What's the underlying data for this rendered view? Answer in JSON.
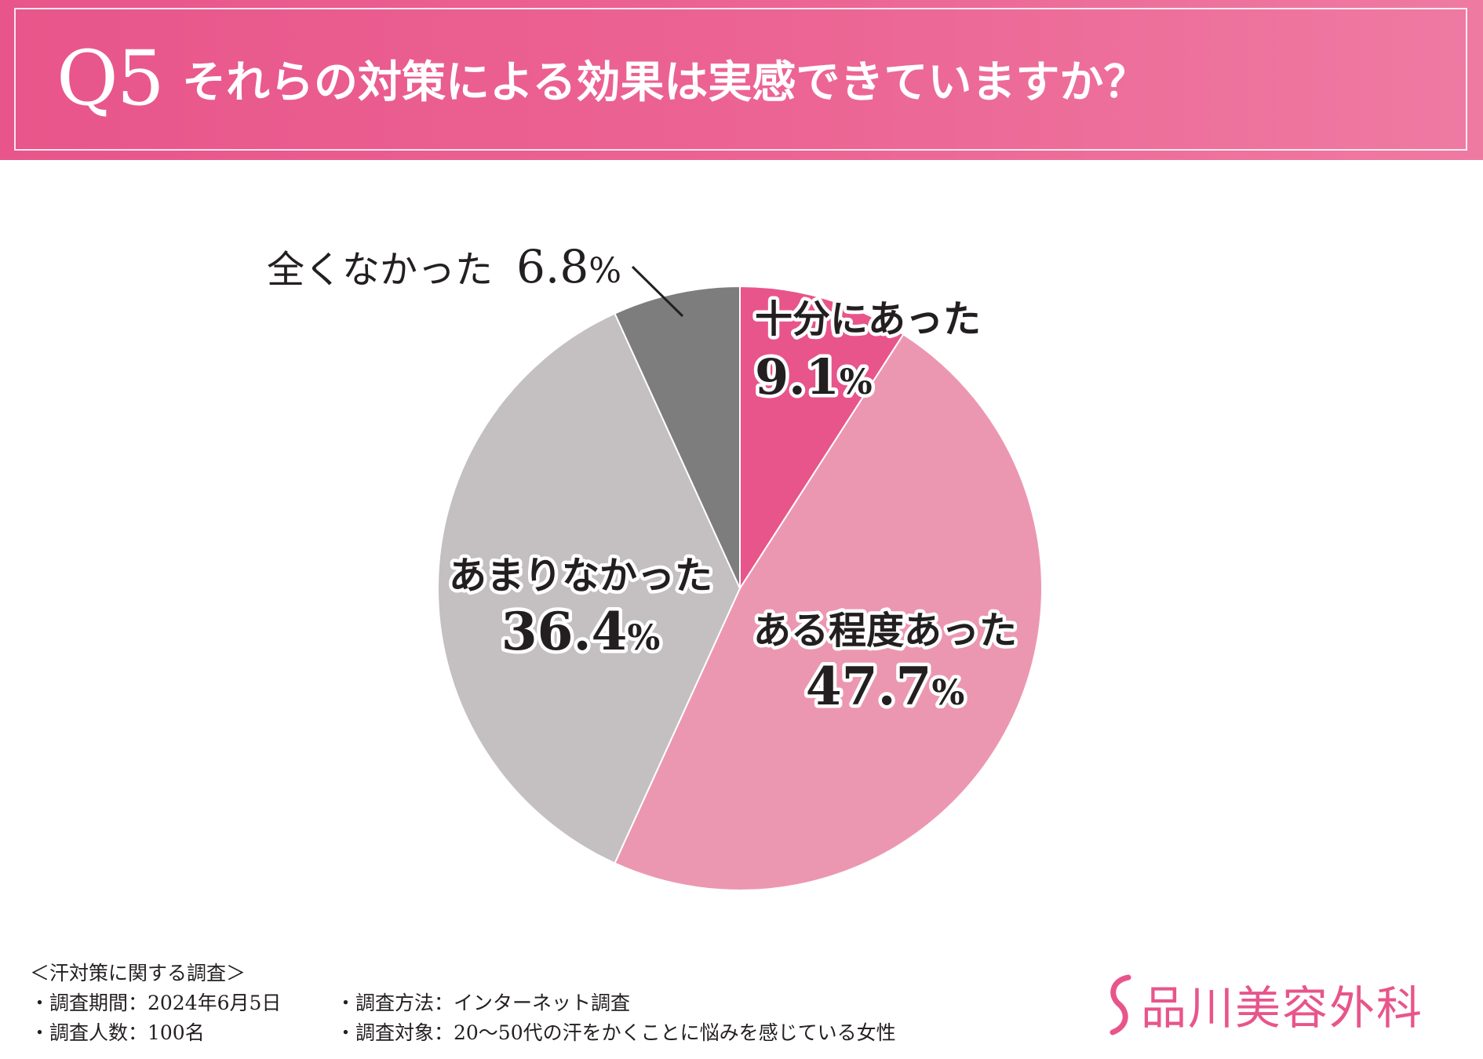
{
  "header": {
    "number": "Q5",
    "question": "それらの対策による効果は実感できていますか？"
  },
  "colors": {
    "header_bg": "#e8558a",
    "slice_very": "#e8558a",
    "slice_somewhat": "#ec97b1",
    "slice_little": "#c4c0c1",
    "slice_none": "#7d7d7d"
  },
  "chart_data": {
    "type": "pie",
    "title": "それらの対策による効果は実感できていますか？",
    "start": "12 o'clock",
    "direction": "clockwise",
    "unit": "%",
    "slices": [
      {
        "label": "十分にあった",
        "value": 9.1,
        "value_text": "9.1"
      },
      {
        "label": "ある程度あった",
        "value": 47.7,
        "value_text": "47.7"
      },
      {
        "label": "あまりなかった",
        "value": 36.4,
        "value_text": "36.4"
      },
      {
        "label": "全くなかった",
        "value": 6.8,
        "value_text": "6.8"
      }
    ]
  },
  "survey": {
    "title": "＜汗対策に関する調査＞",
    "period": "・調査期間：2024年6月5日",
    "count": "・調査人数：100名",
    "method": "・調査方法：インターネット調査",
    "target": "・調査対象：20～50代の汗をかくことに悩みを感じている女性"
  },
  "logo": {
    "text": "品川美容外科",
    "icon": "s-curve-logo-icon"
  }
}
